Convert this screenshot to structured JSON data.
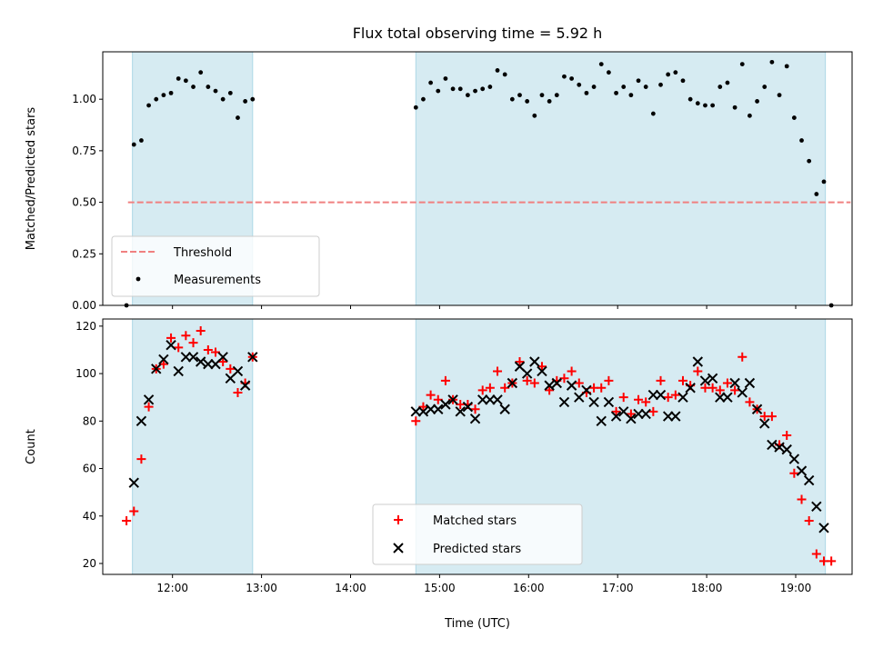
{
  "title": "Flux total observing time = 5.92 h",
  "chart_data": [
    {
      "type": "scatter",
      "ylabel": "Matched/Predicted stars",
      "xlim": [
        "11:13",
        "19:38"
      ],
      "ylim": [
        0,
        1.23
      ],
      "yticks": [
        "0.00",
        "0.25",
        "0.50",
        "0.75",
        "1.00"
      ],
      "grid": false,
      "legend_position": "lower-left",
      "threshold": {
        "name": "Threshold",
        "value": 0.5,
        "x": [
          "11:30",
          "19:37"
        ],
        "color": "#f08080",
        "style": "dashed"
      },
      "spans": [
        {
          "start": "11:33",
          "end": "12:54"
        },
        {
          "start": "14:44",
          "end": "19:20"
        }
      ],
      "span_color": "#add8e6",
      "series": [
        {
          "name": "Measurements",
          "color": "#000000",
          "marker": "dot",
          "points": [
            [
              "11:29",
              0.0
            ],
            [
              "11:34",
              0.78
            ],
            [
              "11:39",
              0.8
            ],
            [
              "11:44",
              0.97
            ],
            [
              "11:49",
              1.0
            ],
            [
              "11:54",
              1.02
            ],
            [
              "11:59",
              1.03
            ],
            [
              "12:04",
              1.1
            ],
            [
              "12:09",
              1.09
            ],
            [
              "12:14",
              1.06
            ],
            [
              "12:19",
              1.13
            ],
            [
              "12:24",
              1.06
            ],
            [
              "12:29",
              1.04
            ],
            [
              "12:34",
              1.0
            ],
            [
              "12:39",
              1.03
            ],
            [
              "12:44",
              0.91
            ],
            [
              "12:49",
              0.99
            ],
            [
              "12:54",
              1.0
            ],
            [
              "14:44",
              0.96
            ],
            [
              "14:49",
              1.0
            ],
            [
              "14:54",
              1.08
            ],
            [
              "14:59",
              1.04
            ],
            [
              "15:04",
              1.1
            ],
            [
              "15:09",
              1.05
            ],
            [
              "15:14",
              1.05
            ],
            [
              "15:19",
              1.02
            ],
            [
              "15:24",
              1.04
            ],
            [
              "15:29",
              1.05
            ],
            [
              "15:34",
              1.06
            ],
            [
              "15:39",
              1.14
            ],
            [
              "15:44",
              1.12
            ],
            [
              "15:49",
              1.0
            ],
            [
              "15:54",
              1.02
            ],
            [
              "15:59",
              0.99
            ],
            [
              "16:04",
              0.92
            ],
            [
              "16:09",
              1.02
            ],
            [
              "16:14",
              0.99
            ],
            [
              "16:19",
              1.02
            ],
            [
              "16:24",
              1.11
            ],
            [
              "16:29",
              1.1
            ],
            [
              "16:34",
              1.07
            ],
            [
              "16:39",
              1.03
            ],
            [
              "16:44",
              1.06
            ],
            [
              "16:49",
              1.17
            ],
            [
              "16:54",
              1.13
            ],
            [
              "16:59",
              1.03
            ],
            [
              "17:04",
              1.06
            ],
            [
              "17:09",
              1.02
            ],
            [
              "17:14",
              1.09
            ],
            [
              "17:19",
              1.06
            ],
            [
              "17:24",
              0.93
            ],
            [
              "17:29",
              1.07
            ],
            [
              "17:34",
              1.12
            ],
            [
              "17:39",
              1.13
            ],
            [
              "17:44",
              1.09
            ],
            [
              "17:49",
              1.0
            ],
            [
              "17:54",
              0.98
            ],
            [
              "17:59",
              0.97
            ],
            [
              "18:04",
              0.97
            ],
            [
              "18:09",
              1.06
            ],
            [
              "18:14",
              1.08
            ],
            [
              "18:19",
              0.96
            ],
            [
              "18:24",
              1.17
            ],
            [
              "18:29",
              0.92
            ],
            [
              "18:34",
              0.99
            ],
            [
              "18:39",
              1.06
            ],
            [
              "18:44",
              1.18
            ],
            [
              "18:49",
              1.02
            ],
            [
              "18:54",
              1.16
            ],
            [
              "18:59",
              0.91
            ],
            [
              "19:04",
              0.8
            ],
            [
              "19:09",
              0.7
            ],
            [
              "19:14",
              0.54
            ],
            [
              "19:19",
              0.6
            ],
            [
              "19:24",
              0.0
            ]
          ]
        }
      ]
    },
    {
      "type": "scatter",
      "xlabel": "Time (UTC)",
      "ylabel": "Count",
      "xlim": [
        "11:13",
        "19:38"
      ],
      "ylim": [
        15.4,
        123
      ],
      "yticks": [
        "20",
        "40",
        "60",
        "80",
        "100",
        "120"
      ],
      "xticks": [
        "12:00",
        "13:00",
        "14:00",
        "15:00",
        "16:00",
        "17:00",
        "18:00",
        "19:00"
      ],
      "grid": false,
      "legend_position": "lower-center",
      "spans": [
        {
          "start": "11:33",
          "end": "12:54"
        },
        {
          "start": "14:44",
          "end": "19:20"
        }
      ],
      "span_color": "#add8e6",
      "series": [
        {
          "name": "Matched stars",
          "color": "#ff0000",
          "marker": "plus",
          "points": [
            [
              "11:29",
              38
            ],
            [
              "11:34",
              42
            ],
            [
              "11:39",
              64
            ],
            [
              "11:44",
              86
            ],
            [
              "11:49",
              102
            ],
            [
              "11:54",
              104
            ],
            [
              "11:59",
              115
            ],
            [
              "12:04",
              111
            ],
            [
              "12:09",
              116
            ],
            [
              "12:14",
              113
            ],
            [
              "12:19",
              118
            ],
            [
              "12:24",
              110
            ],
            [
              "12:29",
              109
            ],
            [
              "12:34",
              105
            ],
            [
              "12:39",
              102
            ],
            [
              "12:44",
              92
            ],
            [
              "12:49",
              96
            ],
            [
              "12:54",
              107
            ],
            [
              "14:44",
              80
            ],
            [
              "14:49",
              86
            ],
            [
              "14:54",
              91
            ],
            [
              "14:59",
              89
            ],
            [
              "15:04",
              97
            ],
            [
              "15:09",
              89
            ],
            [
              "15:14",
              87
            ],
            [
              "15:19",
              87
            ],
            [
              "15:24",
              85
            ],
            [
              "15:29",
              93
            ],
            [
              "15:34",
              94
            ],
            [
              "15:39",
              101
            ],
            [
              "15:44",
              94
            ],
            [
              "15:49",
              96
            ],
            [
              "15:54",
              105
            ],
            [
              "15:59",
              97
            ],
            [
              "16:04",
              96
            ],
            [
              "16:09",
              103
            ],
            [
              "16:14",
              93
            ],
            [
              "16:19",
              97
            ],
            [
              "16:24",
              98
            ],
            [
              "16:29",
              101
            ],
            [
              "16:34",
              96
            ],
            [
              "16:39",
              92
            ],
            [
              "16:44",
              94
            ],
            [
              "16:49",
              94
            ],
            [
              "16:54",
              97
            ],
            [
              "16:59",
              84
            ],
            [
              "17:04",
              90
            ],
            [
              "17:09",
              83
            ],
            [
              "17:14",
              89
            ],
            [
              "17:19",
              88
            ],
            [
              "17:24",
              84
            ],
            [
              "17:29",
              97
            ],
            [
              "17:34",
              90
            ],
            [
              "17:39",
              91
            ],
            [
              "17:44",
              97
            ],
            [
              "17:49",
              95
            ],
            [
              "17:54",
              101
            ],
            [
              "17:59",
              94
            ],
            [
              "18:04",
              94
            ],
            [
              "18:09",
              93
            ],
            [
              "18:14",
              96
            ],
            [
              "18:19",
              93
            ],
            [
              "18:24",
              107
            ],
            [
              "18:29",
              88
            ],
            [
              "18:34",
              85
            ],
            [
              "18:39",
              82
            ],
            [
              "18:44",
              82
            ],
            [
              "18:49",
              70
            ],
            [
              "18:54",
              74
            ],
            [
              "18:59",
              58
            ],
            [
              "19:04",
              47
            ],
            [
              "19:09",
              38
            ],
            [
              "19:14",
              24
            ],
            [
              "19:19",
              21
            ],
            [
              "19:24",
              21
            ]
          ]
        },
        {
          "name": "Predicted stars",
          "color": "#000000",
          "marker": "x",
          "points": [
            [
              "11:34",
              54
            ],
            [
              "11:39",
              80
            ],
            [
              "11:44",
              89
            ],
            [
              "11:49",
              102
            ],
            [
              "11:54",
              106
            ],
            [
              "11:59",
              112
            ],
            [
              "12:04",
              101
            ],
            [
              "12:09",
              107
            ],
            [
              "12:14",
              107
            ],
            [
              "12:19",
              105
            ],
            [
              "12:24",
              104
            ],
            [
              "12:29",
              104
            ],
            [
              "12:34",
              107
            ],
            [
              "12:39",
              98
            ],
            [
              "12:44",
              101
            ],
            [
              "12:49",
              95
            ],
            [
              "12:54",
              107
            ],
            [
              "14:44",
              84
            ],
            [
              "14:49",
              84
            ],
            [
              "14:54",
              85
            ],
            [
              "14:59",
              85
            ],
            [
              "15:04",
              87
            ],
            [
              "15:09",
              89
            ],
            [
              "15:14",
              84
            ],
            [
              "15:19",
              86
            ],
            [
              "15:24",
              81
            ],
            [
              "15:29",
              89
            ],
            [
              "15:34",
              89
            ],
            [
              "15:39",
              89
            ],
            [
              "15:44",
              85
            ],
            [
              "15:49",
              96
            ],
            [
              "15:54",
              103
            ],
            [
              "15:59",
              100
            ],
            [
              "16:04",
              105
            ],
            [
              "16:09",
              101
            ],
            [
              "16:14",
              95
            ],
            [
              "16:19",
              96
            ],
            [
              "16:24",
              88
            ],
            [
              "16:29",
              95
            ],
            [
              "16:34",
              90
            ],
            [
              "16:39",
              93
            ],
            [
              "16:44",
              88
            ],
            [
              "16:49",
              80
            ],
            [
              "16:54",
              88
            ],
            [
              "16:59",
              82
            ],
            [
              "17:04",
              84
            ],
            [
              "17:09",
              81
            ],
            [
              "17:14",
              83
            ],
            [
              "17:19",
              83
            ],
            [
              "17:24",
              91
            ],
            [
              "17:29",
              91
            ],
            [
              "17:34",
              82
            ],
            [
              "17:39",
              82
            ],
            [
              "17:44",
              90
            ],
            [
              "17:49",
              94
            ],
            [
              "17:54",
              105
            ],
            [
              "17:59",
              97
            ],
            [
              "18:04",
              98
            ],
            [
              "18:09",
              90
            ],
            [
              "18:14",
              90
            ],
            [
              "18:19",
              96
            ],
            [
              "18:24",
              92
            ],
            [
              "18:29",
              96
            ],
            [
              "18:34",
              85
            ],
            [
              "18:39",
              79
            ],
            [
              "18:44",
              70
            ],
            [
              "18:49",
              69
            ],
            [
              "18:54",
              68
            ],
            [
              "18:59",
              64
            ],
            [
              "19:04",
              59
            ],
            [
              "19:09",
              55
            ],
            [
              "19:14",
              44
            ],
            [
              "19:19",
              35
            ]
          ]
        }
      ]
    }
  ]
}
